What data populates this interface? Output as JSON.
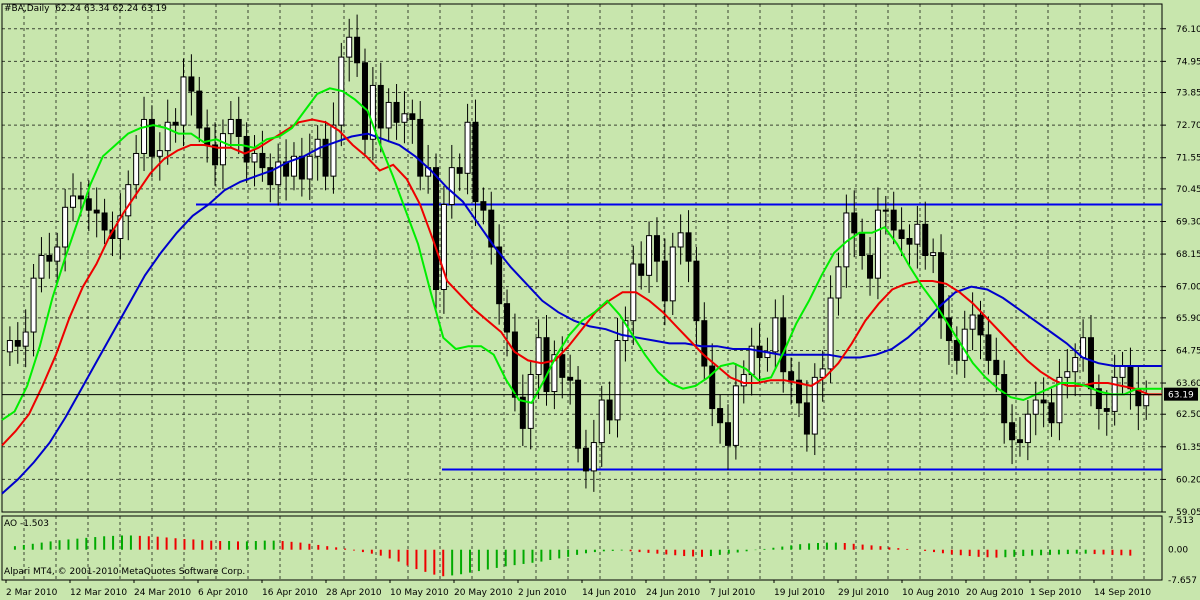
{
  "header": {
    "symbol": "#BA,Daily",
    "ohlc": "62.24 63.34 62.24 63.19"
  },
  "indicator": {
    "label": "AO -1.503"
  },
  "copyright": "Alpari MT4, © 2001-2010 MetaQuotes Software Corp.",
  "colors": {
    "background": "#c8e6ad",
    "grid": "#000000",
    "bull_candle": "#ffffff",
    "bear_candle": "#000000",
    "ma_fast": "#00ee00",
    "ma_mid": "#ee0000",
    "ma_slow": "#0000cc",
    "level_lines": "#0000ee",
    "ao_up": "#00aa00",
    "ao_down": "#ee0000",
    "price_tag_bg": "#000000"
  },
  "chart_data": {
    "type": "candlestick",
    "price_axis_ticks": [
      "76.10",
      "74.95",
      "73.85",
      "72.70",
      "71.55",
      "70.45",
      "69.30",
      "68.15",
      "67.00",
      "65.90",
      "64.75",
      "63.60",
      "62.50",
      "61.35",
      "60.20",
      "59.05"
    ],
    "current_price": "63.19",
    "ylim": [
      59.05,
      76.55
    ],
    "date_labels": [
      "2 Mar 2010",
      "12 Mar 2010",
      "24 Mar 2010",
      "6 Apr 2010",
      "16 Apr 2010",
      "28 Apr 2010",
      "10 May 2010",
      "20 May 2010",
      "2 Jun 2010",
      "14 Jun 2010",
      "24 Jun 2010",
      "7 Jul 2010",
      "19 Jul 2010",
      "29 Jul 2010",
      "10 Aug 2010",
      "20 Aug 2010",
      "1 Sep 2010",
      "14 Sep 2010"
    ],
    "horizontal_levels": [
      69.9,
      60.55
    ],
    "series": [
      {
        "name": "close",
        "values": [
          65.1,
          64.9,
          65.4,
          67.3,
          68.1,
          67.9,
          68.4,
          69.8,
          70.2,
          70.1,
          69.7,
          69.6,
          69.0,
          68.7,
          69.5,
          70.6,
          71.7,
          72.9,
          71.6,
          71.8,
          72.8,
          72.7,
          74.4,
          73.9,
          72.6,
          72.0,
          71.3,
          72.4,
          72.9,
          72.3,
          71.4,
          71.7,
          71.2,
          70.6,
          71.4,
          70.9,
          71.6,
          70.8,
          71.6,
          72.2,
          70.9,
          72.7,
          75.1,
          75.8,
          74.9,
          72.2,
          74.1,
          72.6,
          73.5,
          72.8,
          73.1,
          72.9,
          70.9,
          71.2,
          66.9,
          69.9,
          71.2,
          71.0,
          72.8,
          70.0,
          69.7,
          68.4,
          66.4,
          65.4,
          63.1,
          62.0,
          63.9,
          65.2,
          63.3,
          64.6,
          63.8,
          63.7,
          61.3,
          60.5,
          61.5,
          63.0,
          62.3,
          65.1,
          65.8,
          67.8,
          67.4,
          68.8,
          67.9,
          66.5,
          68.4,
          68.9,
          67.9,
          65.8,
          64.2,
          62.7,
          62.2,
          61.4,
          63.5,
          63.9,
          64.9,
          64.5,
          64.7,
          65.9,
          64.0,
          63.7,
          62.9,
          61.8,
          63.8,
          64.1,
          66.6,
          67.7,
          69.6,
          68.9,
          68.1,
          67.3,
          69.7,
          69.7,
          69.0,
          68.7,
          68.5,
          69.2,
          68.1,
          68.2,
          65.9,
          65.1,
          64.4,
          65.5,
          66.0,
          65.3,
          64.4,
          63.9,
          62.2,
          61.6,
          61.5,
          62.5,
          63.0,
          62.9,
          62.2,
          63.8,
          64.0,
          64.5,
          65.2,
          63.4,
          62.7,
          62.6,
          63.8,
          64.2,
          63.4,
          62.8,
          63.19
        ]
      },
      {
        "name": "MA fast",
        "values": [
          62.3,
          62.6,
          63.5,
          64.9,
          66.6,
          68.0,
          69.3,
          70.6,
          71.6,
          72.0,
          72.4,
          72.6,
          72.7,
          72.6,
          72.4,
          72.4,
          72.1,
          72.2,
          72.0,
          72.0,
          71.9,
          72.2,
          72.3,
          72.6,
          73.2,
          73.8,
          74.0,
          73.9,
          73.6,
          73.2,
          72.0,
          70.9,
          69.7,
          68.5,
          66.8,
          65.2,
          64.8,
          64.9,
          64.9,
          64.6,
          63.7,
          63.0,
          62.9,
          63.7,
          64.6,
          65.3,
          65.8,
          66.1,
          66.5,
          66.0,
          65.3,
          64.6,
          64.0,
          63.6,
          63.4,
          63.5,
          63.8,
          64.2,
          64.3,
          64.1,
          63.7,
          63.8,
          64.7,
          65.7,
          66.5,
          67.4,
          68.2,
          68.6,
          68.9,
          68.9,
          69.1,
          68.5,
          67.7,
          67.0,
          66.4,
          65.7,
          65.0,
          64.3,
          63.8,
          63.4,
          63.1,
          63.0,
          63.2,
          63.4,
          63.6,
          63.6,
          63.5,
          63.3,
          63.2,
          63.2,
          63.4,
          63.4,
          63.4
        ]
      },
      {
        "name": "MA mid",
        "values": [
          61.4,
          61.9,
          62.5,
          63.5,
          64.6,
          65.9,
          67.0,
          67.8,
          68.8,
          69.6,
          70.3,
          71.0,
          71.5,
          71.8,
          72.0,
          72.0,
          71.9,
          71.9,
          71.7,
          71.9,
          72.2,
          72.5,
          72.8,
          72.9,
          72.8,
          72.5,
          72.0,
          71.6,
          71.1,
          71.3,
          70.8,
          69.9,
          68.6,
          67.2,
          66.7,
          66.2,
          65.8,
          65.4,
          64.7,
          64.4,
          64.3,
          64.4,
          64.9,
          65.5,
          66.1,
          66.5,
          66.8,
          66.8,
          66.5,
          66.1,
          65.6,
          65.1,
          64.6,
          64.2,
          63.8,
          63.6,
          63.6,
          63.7,
          63.7,
          63.6,
          63.5,
          63.8,
          64.3,
          65.0,
          65.8,
          66.4,
          66.9,
          67.1,
          67.2,
          67.2,
          67.1,
          66.8,
          66.4,
          65.9,
          65.4,
          64.9,
          64.4,
          64.0,
          63.7,
          63.5,
          63.5,
          63.6,
          63.6,
          63.5,
          63.4,
          63.2,
          63.2
        ]
      },
      {
        "name": "MA slow",
        "values": [
          59.7,
          60.2,
          60.8,
          61.5,
          62.4,
          63.4,
          64.4,
          65.4,
          66.4,
          67.4,
          68.2,
          68.9,
          69.5,
          69.9,
          70.4,
          70.7,
          70.9,
          71.1,
          71.4,
          71.6,
          71.9,
          72.1,
          72.3,
          72.4,
          72.2,
          72.0,
          71.6,
          71.1,
          70.5,
          70.0,
          69.2,
          68.4,
          67.7,
          67.1,
          66.5,
          66.1,
          65.8,
          65.6,
          65.5,
          65.3,
          65.2,
          65.1,
          65.0,
          65.0,
          64.9,
          64.9,
          64.8,
          64.8,
          64.7,
          64.6,
          64.6,
          64.6,
          64.6,
          64.5,
          64.5,
          64.6,
          64.8,
          65.2,
          65.7,
          66.3,
          66.8,
          67.0,
          66.9,
          66.6,
          66.2,
          65.8,
          65.4,
          65.0,
          64.5,
          64.3,
          64.2,
          64.2,
          64.2,
          64.2
        ]
      },
      {
        "name": "AO",
        "values": [
          0.9,
          1.2,
          1.5,
          1.8,
          2.1,
          2.4,
          2.6,
          2.8,
          3.0,
          3.2,
          3.4,
          3.5,
          3.6,
          3.6,
          3.5,
          3.4,
          3.3,
          3.1,
          2.9,
          2.7,
          2.6,
          2.4,
          2.3,
          2.2,
          2.2,
          2.1,
          2.1,
          2.2,
          2.3,
          2.3,
          2.2,
          2.0,
          1.8,
          1.5,
          1.2,
          0.9,
          0.6,
          0.3,
          -0.2,
          -0.6,
          -1.0,
          -1.5,
          -2.2,
          -3.0,
          -4.0,
          -4.9,
          -5.6,
          -6.3,
          -6.7,
          -6.5,
          -6.2,
          -5.8,
          -5.4,
          -5.0,
          -4.6,
          -4.2,
          -3.9,
          -3.6,
          -3.3,
          -3.0,
          -2.6,
          -2.2,
          -1.8,
          -1.3,
          -0.9,
          -0.6,
          -0.4,
          -0.3,
          -0.2,
          -0.4,
          -0.6,
          -0.8,
          -1.0,
          -1.2,
          -1.4,
          -1.6,
          -1.7,
          -1.8,
          -1.6,
          -1.3,
          -1.0,
          -0.7,
          -0.4,
          -0.1,
          0.2,
          0.5,
          0.8,
          1.1,
          1.4,
          1.6,
          1.7,
          1.8,
          1.8,
          1.7,
          1.5,
          1.3,
          1.1,
          0.9,
          0.6,
          0.4,
          0.2,
          0.0,
          -0.3,
          -0.6,
          -0.9,
          -1.2,
          -1.4,
          -1.6,
          -1.8,
          -1.9,
          -2.0,
          -1.9,
          -1.8,
          -1.6,
          -1.5,
          -1.4,
          -1.3,
          -1.2,
          -1.1,
          -1.0,
          -1.0,
          -1.1,
          -1.2,
          -1.3,
          -1.4,
          -1.5
        ]
      }
    ],
    "ao_axis_ticks": [
      "7.513",
      "0.00",
      "-7.657"
    ],
    "ao_ylim": [
      -7.657,
      7.513
    ]
  }
}
